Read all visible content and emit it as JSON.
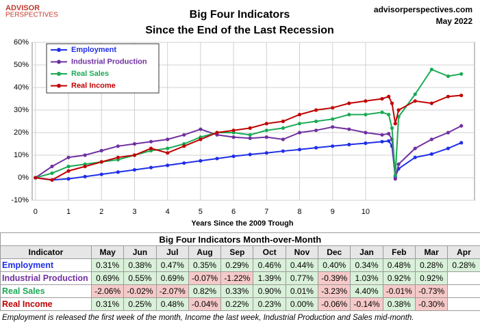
{
  "logo": {
    "line1": "ADVISOR",
    "line2": "PERSPECTIVES"
  },
  "site": "advisorperspectives.com",
  "date": "May 2022",
  "chart_data": {
    "type": "line",
    "title": "Big Four Indicators",
    "subtitle": "Since the End of the Last Recession",
    "x_label": "Years Since the 2009 Trough",
    "x": [
      0,
      0.5,
      1,
      1.5,
      2,
      2.5,
      3,
      3.5,
      4,
      4.5,
      5,
      5.5,
      6,
      6.5,
      7,
      7.5,
      8,
      8.5,
      9,
      9.5,
      10,
      10.5,
      10.7,
      10.8,
      10.9,
      11,
      11.5,
      12,
      12.5,
      12.9
    ],
    "xlim": [
      -0.1,
      13.3
    ],
    "xticks": [
      0,
      1,
      2,
      3,
      4,
      5,
      6,
      7,
      8,
      9,
      10
    ],
    "ylim": [
      -10,
      60
    ],
    "yticks": [
      {
        "value": -10,
        "label": "-10%"
      },
      {
        "value": 0,
        "label": "0%"
      },
      {
        "value": 10,
        "label": "10%"
      },
      {
        "value": 20,
        "label": "20%"
      },
      {
        "value": 30,
        "label": "30%"
      },
      {
        "value": 40,
        "label": "40%"
      },
      {
        "value": 50,
        "label": "50%"
      },
      {
        "value": 60,
        "label": "60%"
      }
    ],
    "grid": true,
    "legend": "top-left",
    "series": [
      {
        "name": "Employment",
        "color": "#1f2ee8",
        "values": [
          0,
          -1,
          -0.5,
          0.5,
          1.5,
          2.5,
          3.5,
          4.5,
          5.5,
          6.5,
          7.5,
          8.5,
          9.5,
          10.3,
          11,
          11.8,
          12.5,
          13.3,
          14,
          14.7,
          15.3,
          16,
          16.3,
          14,
          0.5,
          4,
          9,
          10.5,
          13,
          15.5
        ]
      },
      {
        "name": "Industrial Production",
        "color": "#7030a0",
        "values": [
          0,
          5,
          9,
          10,
          12,
          14,
          15,
          16,
          17,
          19,
          21.5,
          19,
          18,
          17.5,
          18,
          17,
          20,
          21,
          22.5,
          21.5,
          20,
          19,
          19.5,
          17,
          -0.5,
          6,
          13,
          17,
          20,
          23
        ]
      },
      {
        "name": "Real Sales",
        "color": "#1aaa55",
        "values": [
          0,
          2,
          5,
          6,
          7,
          8,
          10,
          12,
          13,
          15,
          18,
          20,
          20,
          19,
          21,
          22,
          24,
          25,
          26,
          28,
          28,
          29,
          28,
          22,
          1,
          27,
          37,
          48,
          45,
          46
        ]
      },
      {
        "name": "Real Income",
        "color": "#c00000",
        "values": [
          0,
          -1,
          3,
          5,
          7,
          9,
          10,
          13,
          11,
          14,
          17,
          20,
          21,
          22,
          24,
          25,
          28,
          30,
          31,
          33,
          34,
          35,
          36,
          33,
          24,
          30,
          34,
          33,
          36,
          36.5
        ]
      }
    ]
  },
  "table": {
    "title": "Big Four Indicators Month-over-Month",
    "header": [
      "Indicator",
      "May",
      "Jun",
      "Jul",
      "Aug",
      "Sep",
      "Oct",
      "Nov",
      "Dec",
      "Jan",
      "Feb",
      "Mar",
      "Apr"
    ],
    "rows": [
      {
        "name": "Employment",
        "color": "#1f2ee8",
        "cells": [
          "0.31%",
          "0.38%",
          "0.47%",
          "0.35%",
          "0.29%",
          "0.46%",
          "0.44%",
          "0.40%",
          "0.34%",
          "0.48%",
          "0.28%",
          "0.28%"
        ]
      },
      {
        "name": "Industrial Production",
        "color": "#7030a0",
        "cells": [
          "0.69%",
          "0.55%",
          "0.69%",
          "-0.07%",
          "-1.22%",
          "1.39%",
          "0.77%",
          "-0.39%",
          "1.03%",
          "0.92%",
          "0.92%"
        ]
      },
      {
        "name": "Real Sales",
        "color": "#1aaa55",
        "cells": [
          "-2.06%",
          "-0.02%",
          "-2.07%",
          "0.82%",
          "0.33%",
          "0.90%",
          "0.01%",
          "-3.23%",
          "4.40%",
          "-0.01%",
          "-0.73%"
        ]
      },
      {
        "name": "Real Income",
        "color": "#c00000",
        "cells": [
          "0.31%",
          "0.25%",
          "0.48%",
          "-0.04%",
          "0.22%",
          "0.23%",
          "0.00%",
          "-0.06%",
          "-0.14%",
          "0.38%",
          "-0.30%"
        ]
      }
    ]
  },
  "footnote": "Employment is released the first week of the month, Income the last week, Industrial Production and Sales mid-month."
}
